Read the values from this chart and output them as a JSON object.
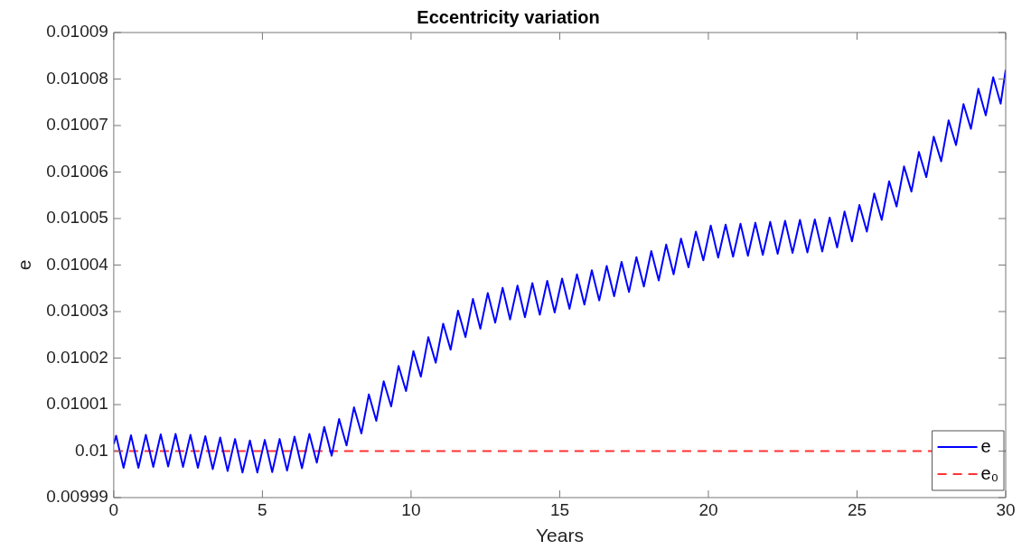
{
  "chart_data": {
    "type": "line",
    "title": "Eccentricity variation",
    "xlabel": "Years",
    "ylabel": "e",
    "xlim": [
      0,
      30
    ],
    "xticks": [
      0,
      5,
      10,
      15,
      20,
      25,
      30
    ],
    "ylim": [
      0.00999,
      0.01009
    ],
    "yticks": [
      0.00999,
      0.01,
      0.01001,
      0.01002,
      0.01003,
      0.01004,
      0.01005,
      0.01006,
      0.01007,
      0.01008,
      0.01009
    ],
    "grid": false,
    "legend": "bottom right",
    "marker": "none",
    "series": [
      {
        "name": "e",
        "color": "#0000ff",
        "type": "line",
        "line_style": "solid",
        "x": [
          0,
          0.08,
          0.33,
          0.58,
          0.83,
          1.08,
          1.33,
          1.58,
          1.83,
          2.08,
          2.33,
          2.58,
          2.83,
          3.08,
          3.33,
          3.58,
          3.83,
          4.08,
          4.33,
          4.58,
          4.83,
          5.08,
          5.33,
          5.58,
          5.83,
          6.08,
          6.33,
          6.58,
          6.83,
          7.08,
          7.33,
          7.58,
          7.83,
          8.08,
          8.33,
          8.58,
          8.83,
          9.08,
          9.33,
          9.58,
          9.83,
          10.08,
          10.33,
          10.58,
          10.83,
          11.08,
          11.33,
          11.58,
          11.83,
          12.08,
          12.33,
          12.58,
          12.83,
          13.08,
          13.33,
          13.58,
          13.83,
          14.08,
          14.33,
          14.58,
          14.83,
          15.08,
          15.33,
          15.58,
          15.83,
          16.08,
          16.33,
          16.58,
          16.83,
          17.08,
          17.33,
          17.58,
          17.83,
          18.08,
          18.33,
          18.58,
          18.83,
          19.08,
          19.33,
          19.58,
          19.83,
          20.08,
          20.33,
          20.58,
          20.83,
          21.08,
          21.33,
          21.58,
          21.83,
          22.08,
          22.33,
          22.58,
          22.83,
          23.08,
          23.33,
          23.58,
          23.83,
          24.08,
          24.33,
          24.58,
          24.83,
          25.08,
          25.33,
          25.58,
          25.83,
          26.08,
          26.33,
          26.58,
          26.83,
          27.08,
          27.33,
          27.58,
          27.83,
          28.08,
          28.33,
          28.58,
          28.83,
          29.08,
          29.33,
          29.58,
          29.83,
          30
        ],
        "values": [
          0.0100015,
          0.0100033,
          0.0099964,
          0.0100034,
          0.0099964,
          0.0100035,
          0.0099966,
          0.0100036,
          0.0099967,
          0.0100037,
          0.0099966,
          0.0100035,
          0.0099964,
          0.0100032,
          0.0099961,
          0.0100029,
          0.0099957,
          0.0100026,
          0.0099954,
          0.0100023,
          0.0099954,
          0.0100024,
          0.0099955,
          0.0100026,
          0.0099958,
          0.0100031,
          0.0099963,
          0.0100037,
          0.0099975,
          0.0100052,
          0.009999,
          0.0100069,
          0.0100012,
          0.0100094,
          0.0100038,
          0.0100122,
          0.0100065,
          0.010015,
          0.0100096,
          0.0100183,
          0.0100129,
          0.0100215,
          0.010016,
          0.0100245,
          0.010019,
          0.0100274,
          0.0100218,
          0.0100302,
          0.0100245,
          0.0100327,
          0.0100263,
          0.010034,
          0.0100276,
          0.0100351,
          0.0100283,
          0.0100356,
          0.0100288,
          0.0100361,
          0.0100293,
          0.0100366,
          0.0100298,
          0.0100371,
          0.0100306,
          0.010038,
          0.0100315,
          0.0100389,
          0.0100324,
          0.0100398,
          0.0100333,
          0.0100407,
          0.0100342,
          0.0100417,
          0.0100354,
          0.010043,
          0.0100367,
          0.0100444,
          0.010038,
          0.0100457,
          0.0100395,
          0.0100472,
          0.010041,
          0.0100485,
          0.0100416,
          0.0100487,
          0.0100418,
          0.0100489,
          0.010042,
          0.0100491,
          0.0100422,
          0.0100493,
          0.0100424,
          0.0100495,
          0.0100426,
          0.0100497,
          0.0100427,
          0.0100498,
          0.0100429,
          0.0100502,
          0.0100438,
          0.0100515,
          0.0100451,
          0.0100529,
          0.0100472,
          0.0100554,
          0.0100497,
          0.010058,
          0.0100526,
          0.0100612,
          0.0100558,
          0.0100643,
          0.0100589,
          0.0100676,
          0.0100623,
          0.0100711,
          0.0100658,
          0.0100746,
          0.0100693,
          0.0100779,
          0.0100722,
          0.0100804,
          0.0100747,
          0.010082
        ]
      },
      {
        "name": "e₀",
        "color": "#ff3333",
        "type": "line",
        "line_style": "dashed",
        "x": [
          0,
          30
        ],
        "values": [
          0.01,
          0.01
        ]
      }
    ]
  }
}
